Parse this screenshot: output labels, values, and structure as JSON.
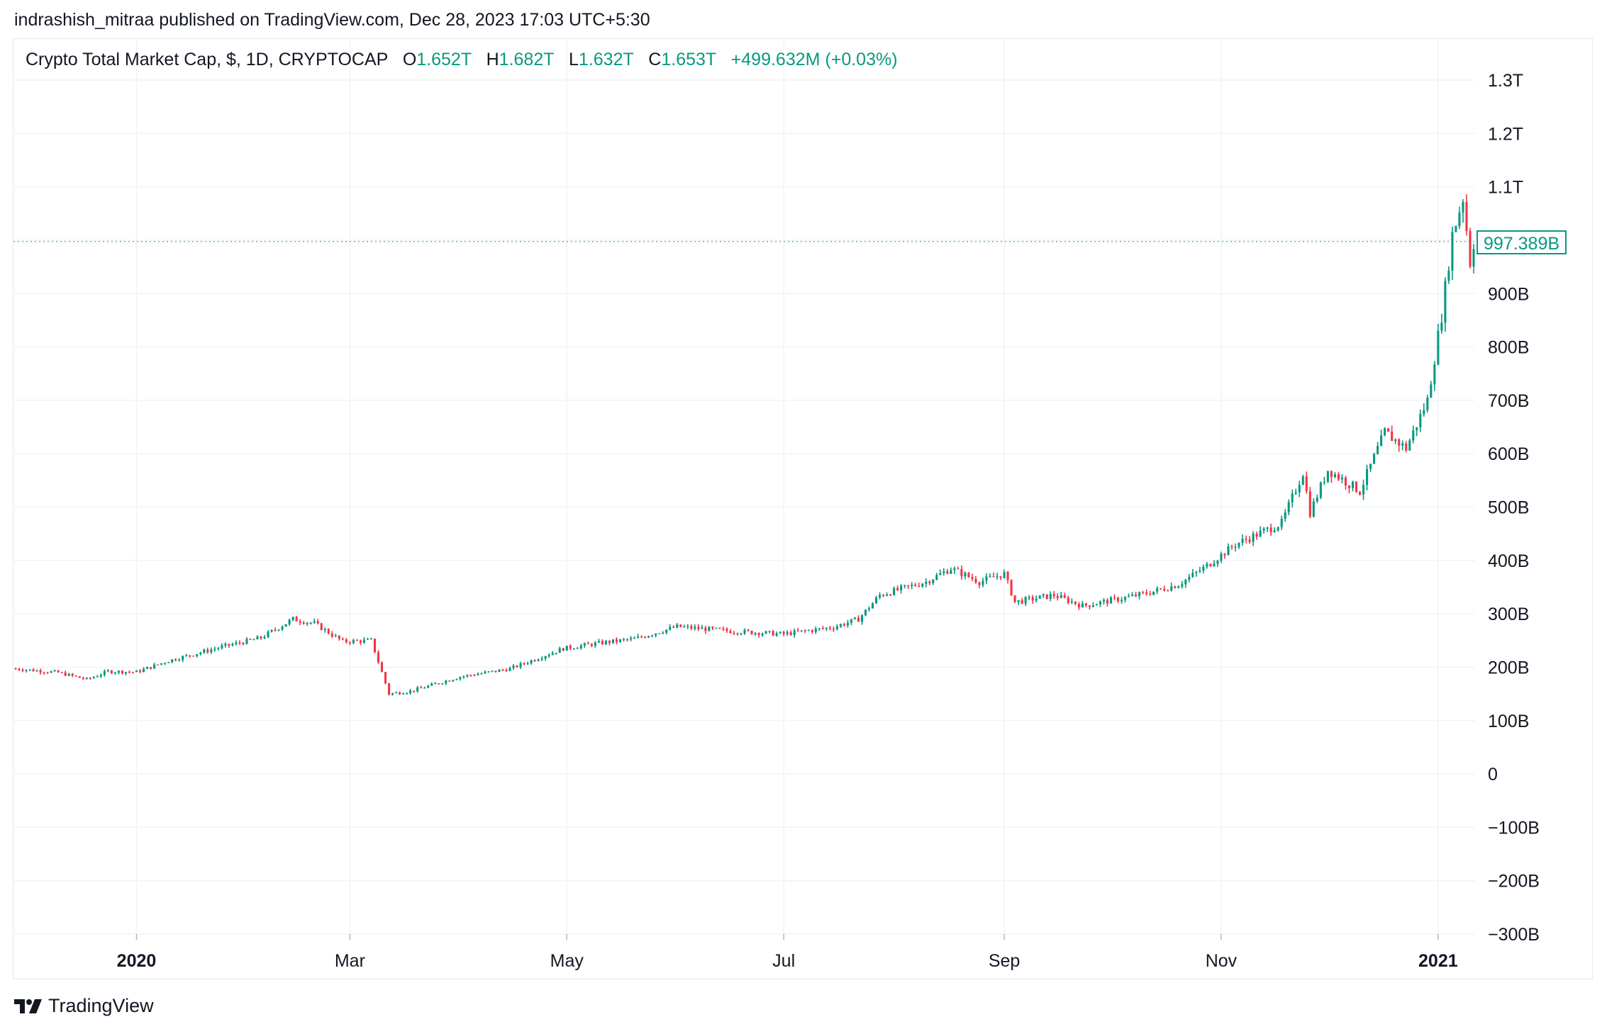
{
  "header": {
    "published": "indrashish_mitraa published on TradingView.com, Dec 28, 2023 17:03 UTC+5:30"
  },
  "legend": {
    "symbol": "Crypto Total Market Cap, $, 1D, CRYPTOCAP",
    "open_key": "O",
    "open": "1.652T",
    "high_key": "H",
    "high": "1.682T",
    "low_key": "L",
    "low": "1.632T",
    "close_key": "C",
    "close": "1.653T",
    "change": "+499.632M (+0.03%)"
  },
  "price_label": "997.389B",
  "brand": {
    "name": "TradingView",
    "icon": "tradingview-logo-icon"
  },
  "colors": {
    "up": "#089981",
    "down": "#f23645",
    "grid": "#f0f3fa",
    "text": "#131722"
  },
  "chart_data": {
    "type": "candlestick",
    "title": "Crypto Total Market Cap, $, 1D, CRYPTOCAP",
    "y_unit": "B",
    "ylim": [
      -300,
      1300
    ],
    "y_ticks": [
      1300,
      1200,
      1100,
      1000,
      900,
      800,
      700,
      600,
      500,
      400,
      300,
      200,
      100,
      0,
      -100,
      -200,
      -300
    ],
    "y_tick_labels": [
      "1.3T",
      "1.2T",
      "1.1T",
      "",
      "900B",
      "800B",
      "700B",
      "600B",
      "500B",
      "400B",
      "300B",
      "200B",
      "100B",
      "0",
      "−100B",
      "−200B",
      "−300B"
    ],
    "x_range": [
      "2019-11-28",
      "2021-01-11"
    ],
    "x_ticks": [
      {
        "date": "2020-01-01",
        "label": "2020",
        "bold": true
      },
      {
        "date": "2020-03-01",
        "label": "Mar",
        "bold": false
      },
      {
        "date": "2020-05-01",
        "label": "May",
        "bold": false
      },
      {
        "date": "2020-07-01",
        "label": "Jul",
        "bold": false
      },
      {
        "date": "2020-09-01",
        "label": "Sep",
        "bold": false
      },
      {
        "date": "2020-11-01",
        "label": "Nov",
        "bold": false
      },
      {
        "date": "2021-01-01",
        "label": "2021",
        "bold": true
      }
    ],
    "last_close": 997.389,
    "grid": true,
    "close_path": [
      [
        "2019-11-28",
        197
      ],
      [
        "2019-12-10",
        190
      ],
      [
        "2019-12-18",
        177
      ],
      [
        "2019-12-24",
        192
      ],
      [
        "2020-01-01",
        191
      ],
      [
        "2020-01-10",
        212
      ],
      [
        "2020-01-25",
        238
      ],
      [
        "2020-02-05",
        255
      ],
      [
        "2020-02-14",
        290
      ],
      [
        "2020-02-20",
        282
      ],
      [
        "2020-02-28",
        248
      ],
      [
        "2020-03-07",
        250
      ],
      [
        "2020-03-12",
        150
      ],
      [
        "2020-03-18",
        155
      ],
      [
        "2020-04-01",
        182
      ],
      [
        "2020-04-15",
        197
      ],
      [
        "2020-04-30",
        235
      ],
      [
        "2020-05-10",
        245
      ],
      [
        "2020-05-20",
        253
      ],
      [
        "2020-06-01",
        276
      ],
      [
        "2020-06-15",
        268
      ],
      [
        "2020-07-01",
        262
      ],
      [
        "2020-07-15",
        275
      ],
      [
        "2020-07-22",
        290
      ],
      [
        "2020-07-28",
        335
      ],
      [
        "2020-08-10",
        360
      ],
      [
        "2020-08-17",
        385
      ],
      [
        "2020-08-25",
        360
      ],
      [
        "2020-09-01",
        375
      ],
      [
        "2020-09-04",
        322
      ],
      [
        "2020-09-15",
        335
      ],
      [
        "2020-09-23",
        315
      ],
      [
        "2020-10-05",
        330
      ],
      [
        "2020-10-12",
        340
      ],
      [
        "2020-10-20",
        355
      ],
      [
        "2020-10-28",
        390
      ],
      [
        "2020-11-05",
        430
      ],
      [
        "2020-11-18",
        470
      ],
      [
        "2020-11-24",
        565
      ],
      [
        "2020-11-26",
        490
      ],
      [
        "2020-12-01",
        570
      ],
      [
        "2020-12-10",
        530
      ],
      [
        "2020-12-17",
        640
      ],
      [
        "2020-12-23",
        610
      ],
      [
        "2020-12-29",
        700
      ],
      [
        "2021-01-02",
        860
      ],
      [
        "2021-01-05",
        1010
      ],
      [
        "2021-01-08",
        1080
      ],
      [
        "2021-01-10",
        960
      ],
      [
        "2021-01-11",
        997
      ]
    ]
  }
}
